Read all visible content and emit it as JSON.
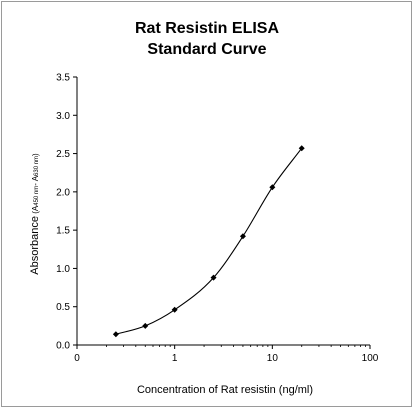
{
  "chart_data": {
    "type": "line",
    "title": [
      "Rat Resistin ELISA",
      "Standard Curve"
    ],
    "xlabel": "Concentration of Rat resistin (ng/ml)",
    "ylabel": {
      "main": "Absorbance",
      "detail_open": " (A",
      "sub1": "450 nm",
      "detail_mid": "- A",
      "sub2": "630 nm",
      "detail_close": ")"
    },
    "x_scale": "log",
    "xlim": [
      0.1,
      100
    ],
    "ylim": [
      0,
      3.5
    ],
    "x_ticks": [
      0.1,
      1,
      10,
      100
    ],
    "x_tick_labels": [
      "0",
      "1",
      "10",
      "100"
    ],
    "y_ticks": [
      0,
      0.5,
      1.0,
      1.5,
      2.0,
      2.5,
      3.0,
      3.5
    ],
    "y_tick_labels": [
      "0.0",
      "0.5",
      "1.0",
      "1.5",
      "2.0",
      "2.5",
      "3.0",
      "3.5"
    ],
    "grid": false,
    "legend": "none",
    "series": [
      {
        "x": [
          0.25,
          0.5,
          1,
          2.5,
          5,
          10,
          20
        ],
        "y": [
          0.14,
          0.25,
          0.46,
          0.88,
          1.42,
          2.06,
          2.57
        ],
        "color": "#000000",
        "marker": "diamond"
      }
    ]
  }
}
